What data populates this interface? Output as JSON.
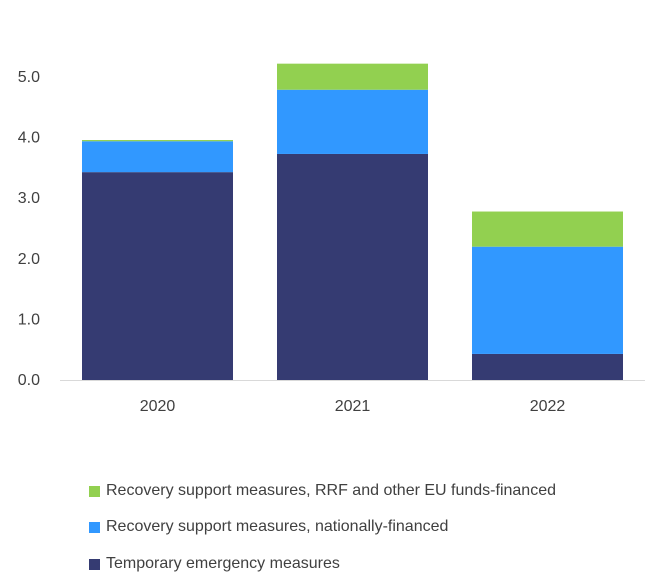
{
  "chart_data": {
    "type": "bar",
    "stacked": true,
    "title": "",
    "xlabel": "",
    "ylabel": "",
    "categories": [
      "2020",
      "2021",
      "2022"
    ],
    "ylim": [
      0,
      6
    ],
    "yticks": [
      "0.0",
      "1.0",
      "2.0",
      "3.0",
      "4.0",
      "5.0"
    ],
    "grid": false,
    "legend_position": "bottom",
    "series": [
      {
        "name": "Temporary emergency measures",
        "color": "#353B72",
        "values": [
          3.43,
          3.73,
          0.43
        ]
      },
      {
        "name": "Recovery support measures, nationally-financed",
        "color": "#3198FF",
        "values": [
          0.51,
          1.06,
          1.77
        ]
      },
      {
        "name": "Recovery support measures, RRF and other EU funds-financed",
        "color": "#92D050",
        "values": [
          0.02,
          0.43,
          0.58
        ]
      }
    ]
  }
}
